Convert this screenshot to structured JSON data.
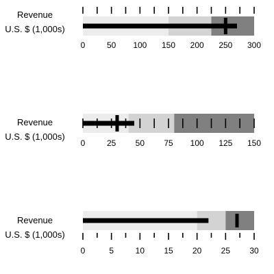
{
  "chart_data": [
    {
      "type": "bullet",
      "title": "Revenue",
      "subtitle": "U.S. $ (1,000s)",
      "axis": {
        "min": 0,
        "max": 300,
        "tick_labels": [
          "0",
          "50",
          "100",
          "150",
          "200",
          "250",
          "300"
        ],
        "major_step": 50,
        "minor_step": 25
      },
      "tick_position": "top",
      "ranges": [
        150,
        225,
        300
      ],
      "measure": 270,
      "target": 250
    },
    {
      "type": "bullet",
      "title": "Revenue",
      "subtitle": "U.S. $ (1,000s)",
      "axis": {
        "min": 0,
        "max": 150,
        "tick_labels": [
          "0",
          "25",
          "50",
          "75",
          "100",
          "125",
          "150"
        ],
        "major_step": 25,
        "minor_step": 12.5
      },
      "tick_position": "inside",
      "ranges": [
        40,
        80,
        150
      ],
      "measure": 45,
      "target": 30
    },
    {
      "type": "bullet",
      "title": "Revenue",
      "subtitle": "U.S. $ (1,000s)",
      "axis": {
        "min": 0,
        "max": 30,
        "tick_labels": [
          "0",
          "5",
          "10",
          "15",
          "20",
          "25",
          "30"
        ],
        "major_step": 5,
        "minor_step": 2.5
      },
      "tick_position": "bottom",
      "ranges": [
        20,
        25,
        30
      ],
      "measure": 22,
      "target": 27
    }
  ],
  "colors": {
    "range_light": "#ececec",
    "range_mid": "#d3d3d3",
    "range_dark": "#808080",
    "measure": "#000000",
    "target": "#000000",
    "ticks": "#000000"
  }
}
